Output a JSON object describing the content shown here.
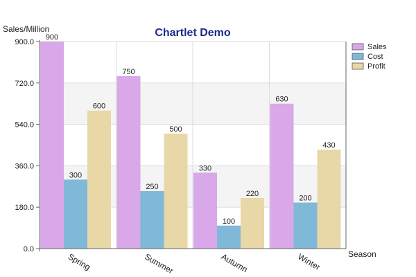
{
  "chart_data": {
    "type": "bar",
    "title": "Chartlet Demo",
    "xlabel": "Season",
    "ylabel": "Sales/Million",
    "categories": [
      "Spring",
      "Summer",
      "Autumn",
      "Winter"
    ],
    "series": [
      {
        "name": "Sales",
        "values": [
          900,
          750,
          330,
          630
        ],
        "color": "#d8a8e8"
      },
      {
        "name": "Cost",
        "values": [
          300,
          250,
          100,
          200
        ],
        "color": "#80b8d8"
      },
      {
        "name": "Profit",
        "values": [
          600,
          500,
          220,
          430
        ],
        "color": "#e8d8a8"
      }
    ],
    "ylim": [
      0,
      900
    ],
    "yticks": [
      0,
      180,
      360,
      540,
      720,
      900
    ],
    "ytick_labels": [
      "0.0",
      "180.0",
      "360.0",
      "540.0",
      "720.0",
      "900.0"
    ],
    "grid": true,
    "legend": "right"
  }
}
